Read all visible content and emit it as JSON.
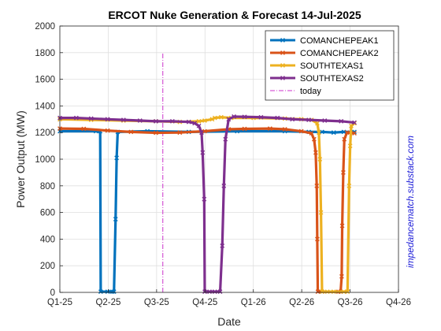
{
  "chart_data": {
    "type": "line",
    "title": "ERCOT Nuke Generation & Forecast 14-Jul-2025",
    "xlabel": "Date",
    "ylabel": "Power Output (MW)",
    "x_categories": [
      "Q1-25",
      "Q2-25",
      "Q3-25",
      "Q4-25",
      "Q1-26",
      "Q2-26",
      "Q3-26",
      "Q4-26"
    ],
    "ylim": [
      0,
      2000
    ],
    "yticks": [
      0,
      200,
      400,
      600,
      800,
      1000,
      1200,
      1400,
      1600,
      1800,
      2000
    ],
    "grid": true,
    "legend_position": "top-right",
    "today": {
      "label": "today",
      "x": "2025-07-14",
      "color": "#cc33cc"
    },
    "series": [
      {
        "name": "COMANCHEPEAK1",
        "color": "#0072bd",
        "points": [
          [
            "2025-01-01",
            1210
          ],
          [
            "2025-03-10",
            1210
          ],
          [
            "2025-03-18",
            1210
          ],
          [
            "2025-03-19",
            5
          ],
          [
            "2025-04-01",
            5
          ],
          [
            "2025-04-10",
            5
          ],
          [
            "2025-04-13",
            5
          ],
          [
            "2025-04-16",
            550
          ],
          [
            "2025-04-18",
            1010
          ],
          [
            "2025-04-20",
            1205
          ],
          [
            "2025-06-15",
            1210
          ],
          [
            "2025-09-01",
            1205
          ],
          [
            "2025-12-01",
            1210
          ],
          [
            "2026-03-01",
            1210
          ],
          [
            "2026-04-15",
            1205
          ],
          [
            "2026-05-10",
            1205
          ],
          [
            "2026-06-01",
            1200
          ],
          [
            "2026-06-20",
            1205
          ],
          [
            "2026-07-10",
            1205
          ]
        ]
      },
      {
        "name": "COMANCHEPEAK2",
        "color": "#d95319",
        "points": [
          [
            "2025-01-01",
            1230
          ],
          [
            "2025-02-15",
            1228
          ],
          [
            "2025-04-01",
            1215
          ],
          [
            "2025-05-15",
            1205
          ],
          [
            "2025-07-01",
            1198
          ],
          [
            "2025-08-15",
            1200
          ],
          [
            "2025-10-01",
            1210
          ],
          [
            "2025-11-15",
            1225
          ],
          [
            "2025-12-15",
            1228
          ],
          [
            "2026-02-01",
            1230
          ],
          [
            "2026-03-01",
            1225
          ],
          [
            "2026-04-01",
            1210
          ],
          [
            "2026-04-20",
            1195
          ],
          [
            "2026-04-25",
            1150
          ],
          [
            "2026-04-28",
            1050
          ],
          [
            "2026-04-30",
            800
          ],
          [
            "2026-05-01",
            400
          ],
          [
            "2026-05-02",
            5
          ],
          [
            "2026-05-10",
            5
          ],
          [
            "2026-06-10",
            5
          ],
          [
            "2026-06-14",
            5
          ],
          [
            "2026-06-16",
            120
          ],
          [
            "2026-06-17",
            500
          ],
          [
            "2026-06-19",
            900
          ],
          [
            "2026-06-21",
            1150
          ],
          [
            "2026-06-26",
            1200
          ],
          [
            "2026-07-10",
            1195
          ]
        ]
      },
      {
        "name": "SOUTHTEXAS1",
        "color": "#edb120",
        "points": [
          [
            "2025-01-01",
            1300
          ],
          [
            "2025-03-01",
            1295
          ],
          [
            "2025-05-01",
            1290
          ],
          [
            "2025-07-01",
            1285
          ],
          [
            "2025-08-15",
            1280
          ],
          [
            "2025-09-20",
            1285
          ],
          [
            "2025-10-01",
            1290
          ],
          [
            "2025-10-15",
            1300
          ],
          [
            "2025-10-20",
            1310
          ],
          [
            "2025-11-01",
            1315
          ],
          [
            "2025-11-20",
            1310
          ],
          [
            "2026-01-01",
            1310
          ],
          [
            "2026-03-01",
            1305
          ],
          [
            "2026-04-01",
            1300
          ],
          [
            "2026-04-20",
            1295
          ],
          [
            "2026-05-01",
            1270
          ],
          [
            "2026-05-04",
            1200
          ],
          [
            "2026-05-06",
            1000
          ],
          [
            "2026-05-08",
            600
          ],
          [
            "2026-05-10",
            5
          ],
          [
            "2026-05-20",
            5
          ],
          [
            "2026-06-01",
            5
          ],
          [
            "2026-06-20",
            5
          ],
          [
            "2026-06-27",
            5
          ],
          [
            "2026-06-30",
            800
          ],
          [
            "2026-07-02",
            1100
          ],
          [
            "2026-07-04",
            1250
          ],
          [
            "2026-07-10",
            1270
          ]
        ]
      },
      {
        "name": "SOUTHTEXAS2",
        "color": "#7e2f8e",
        "points": [
          [
            "2025-01-01",
            1310
          ],
          [
            "2025-02-01",
            1310
          ],
          [
            "2025-03-01",
            1305
          ],
          [
            "2025-04-01",
            1300
          ],
          [
            "2025-05-01",
            1295
          ],
          [
            "2025-06-01",
            1290
          ],
          [
            "2025-07-01",
            1285
          ],
          [
            "2025-08-01",
            1285
          ],
          [
            "2025-09-01",
            1280
          ],
          [
            "2025-09-12",
            1270
          ],
          [
            "2025-09-20",
            1250
          ],
          [
            "2025-09-25",
            1200
          ],
          [
            "2025-09-27",
            1050
          ],
          [
            "2025-09-30",
            700
          ],
          [
            "2025-10-01",
            5
          ],
          [
            "2025-10-10",
            5
          ],
          [
            "2025-10-20",
            5
          ],
          [
            "2025-10-30",
            5
          ],
          [
            "2025-11-03",
            350
          ],
          [
            "2025-11-06",
            800
          ],
          [
            "2025-11-09",
            1150
          ],
          [
            "2025-11-15",
            1300
          ],
          [
            "2025-11-25",
            1320
          ],
          [
            "2025-12-15",
            1318
          ],
          [
            "2026-01-15",
            1315
          ],
          [
            "2026-02-15",
            1310
          ],
          [
            "2026-03-15",
            1300
          ],
          [
            "2026-04-15",
            1295
          ],
          [
            "2026-05-15",
            1290
          ],
          [
            "2026-06-15",
            1285
          ],
          [
            "2026-07-10",
            1275
          ]
        ]
      }
    ]
  },
  "watermark": "impedancematch.substack.com"
}
